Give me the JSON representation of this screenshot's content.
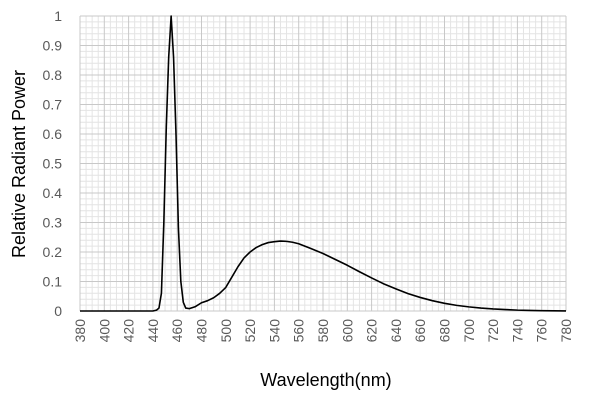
{
  "chart_data": {
    "type": "line",
    "xlabel": "Wavelength(nm)",
    "ylabel": "Relative Radiant Power",
    "xlim": [
      380,
      780
    ],
    "ylim": [
      0,
      1
    ],
    "x_ticks": [
      "380",
      "400",
      "420",
      "440",
      "460",
      "480",
      "500",
      "520",
      "540",
      "560",
      "580",
      "600",
      "620",
      "640",
      "660",
      "680",
      "700",
      "720",
      "740",
      "760",
      "780"
    ],
    "y_ticks": [
      "0",
      "0.1",
      "0.2",
      "0.3",
      "0.4",
      "0.5",
      "0.6",
      "0.7",
      "0.8",
      "0.9",
      "1"
    ],
    "grid": true,
    "series": [
      {
        "color": "#000000",
        "x": [
          380,
          400,
          420,
          440,
          443,
          445,
          447,
          449,
          451,
          453,
          455,
          457,
          459,
          461,
          463,
          465,
          467,
          470,
          475,
          480,
          485,
          490,
          495,
          500,
          505,
          510,
          515,
          520,
          525,
          530,
          535,
          540,
          545,
          550,
          555,
          560,
          570,
          580,
          590,
          600,
          610,
          620,
          630,
          640,
          650,
          660,
          670,
          680,
          690,
          700,
          710,
          720,
          730,
          740,
          750,
          760,
          770,
          780
        ],
        "y": [
          0,
          0,
          0,
          0,
          0.003,
          0.01,
          0.06,
          0.3,
          0.62,
          0.86,
          1.0,
          0.86,
          0.6,
          0.28,
          0.1,
          0.03,
          0.01,
          0.008,
          0.015,
          0.028,
          0.035,
          0.045,
          0.06,
          0.08,
          0.115,
          0.15,
          0.18,
          0.2,
          0.215,
          0.225,
          0.232,
          0.235,
          0.237,
          0.236,
          0.233,
          0.228,
          0.212,
          0.195,
          0.175,
          0.155,
          0.133,
          0.112,
          0.092,
          0.075,
          0.059,
          0.046,
          0.035,
          0.026,
          0.019,
          0.014,
          0.01,
          0.007,
          0.005,
          0.003,
          0.002,
          0.001,
          0.0005,
          0.0003
        ]
      }
    ]
  }
}
